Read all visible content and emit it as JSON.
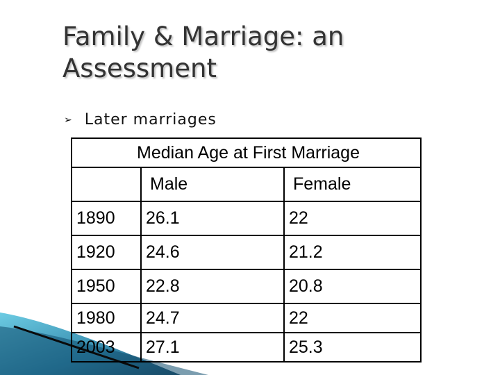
{
  "title_line1": "Family & Marriage: an",
  "title_line2": "Assessment",
  "bullet": {
    "icon": "bullet-arrow-icon",
    "text": "Later marriages"
  },
  "table": {
    "caption": "Median Age at First Marriage",
    "headers": [
      "",
      "Male",
      "Female"
    ],
    "rows": [
      [
        "1890",
        "26.1",
        "22"
      ],
      [
        "1920",
        "24.6",
        "21.2"
      ],
      [
        "1950",
        "22.8",
        "20.8"
      ],
      [
        "1980",
        "24.7",
        "22"
      ],
      [
        "2003",
        "27.1",
        "25.3"
      ]
    ]
  },
  "colors": {
    "title": "#333333",
    "accent_teal": "#2c8fb0",
    "accent_dark": "#0f3a52"
  }
}
